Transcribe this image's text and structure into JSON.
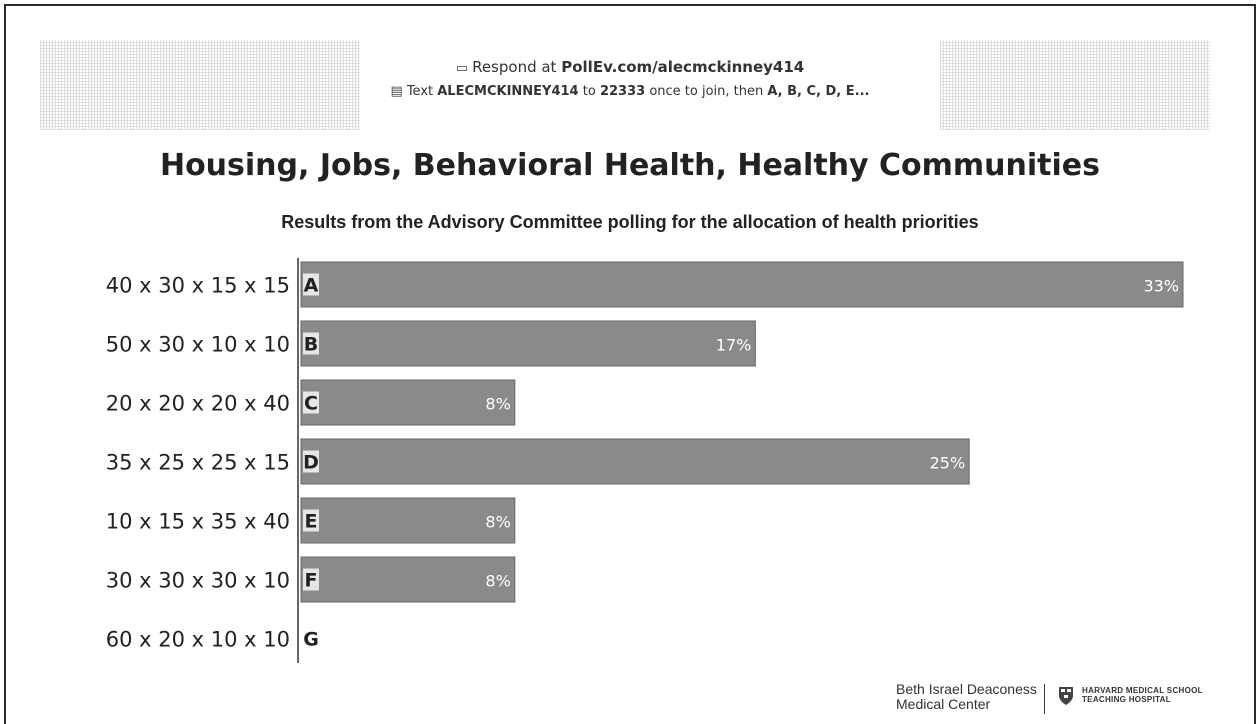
{
  "header": {
    "respond_prefix": "Respond at",
    "respond_url": "PollEv.com/alecmckinney414",
    "text_prefix": "Text",
    "text_code": "ALECMCKINNEY414",
    "text_to": "to",
    "text_number": "22333",
    "text_suffix": "once to join, then",
    "text_options": "A, B, C, D, E..."
  },
  "chart_data": {
    "type": "bar",
    "orientation": "horizontal",
    "title": "Housing, Jobs, Behavioral Health, Healthy Communities",
    "subtitle": "Results from the Advisory Committee polling for the allocation of health priorities",
    "categories": [
      "40 x 30 x 15 x 15",
      "50 x 30 x 10 x 10",
      "20 x 20 x 20 x 40",
      "35 x 25 x 25 x 15",
      "10 x 15 x 35 x 40",
      "30 x 30 x 30 x 10",
      "60 x 20 x 10 x 10"
    ],
    "letters": [
      "A",
      "B",
      "C",
      "D",
      "E",
      "F",
      "G"
    ],
    "values": [
      33,
      17,
      8,
      25,
      8,
      8,
      0
    ],
    "value_labels": [
      "33%",
      "17%",
      "8%",
      "25%",
      "8%",
      "8%",
      ""
    ],
    "xlim": [
      0,
      33
    ],
    "bar_color": "#8a8a8a",
    "grid": false
  },
  "footer": {
    "logo_line1": "Beth Israel Deaconess",
    "logo_line2": "Medical Center",
    "logo_right1": "HARVARD MEDICAL SCHOOL",
    "logo_right2": "TEACHING HOSPITAL"
  }
}
